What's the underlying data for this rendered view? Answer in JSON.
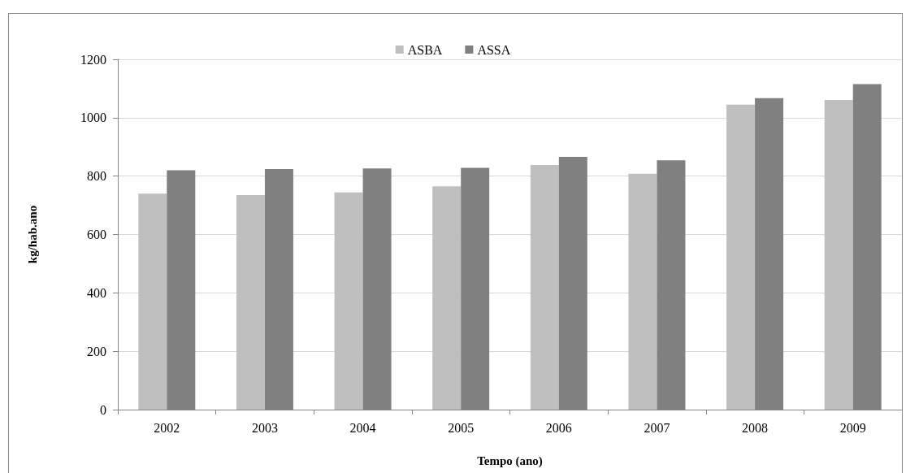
{
  "chart_data": {
    "type": "bar",
    "categories": [
      "2002",
      "2003",
      "2004",
      "2005",
      "2006",
      "2007",
      "2008",
      "2009"
    ],
    "series": [
      {
        "name": "ASBA",
        "color": "#bfbfbf",
        "values": [
          740,
          735,
          744,
          765,
          838,
          808,
          1045,
          1061
        ]
      },
      {
        "name": "ASSA",
        "color": "#808080",
        "values": [
          820,
          824,
          826,
          828,
          866,
          854,
          1067,
          1115
        ]
      }
    ],
    "xlabel": "Tempo (ano)",
    "ylabel": "kg/hab.ano",
    "ylim": [
      0,
      1200
    ],
    "yticks": [
      0,
      200,
      400,
      600,
      800,
      1000,
      1200
    ],
    "grid": "y",
    "legend": "top"
  }
}
